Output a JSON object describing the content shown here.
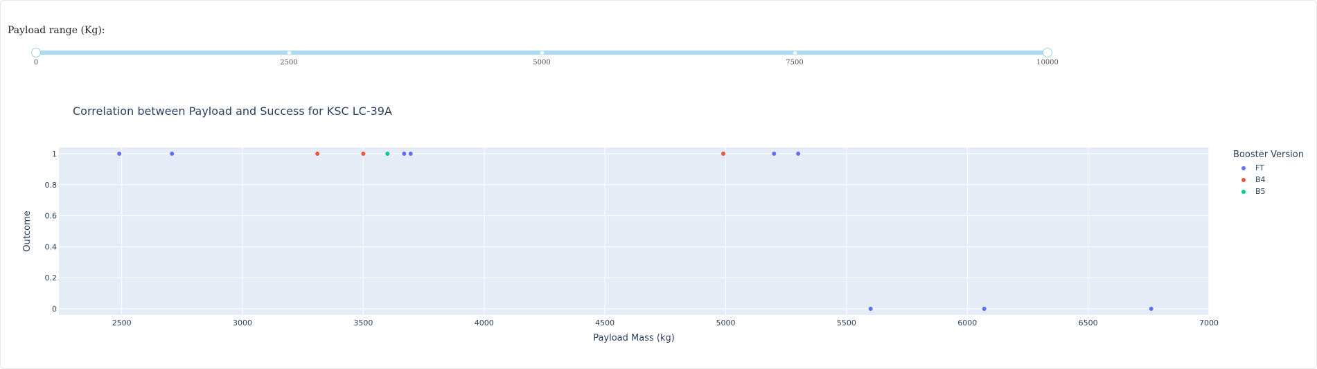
{
  "slider": {
    "label": "Payload range (Kg):",
    "min": 0,
    "max": 10000,
    "value": [
      0,
      10000
    ],
    "marks": [
      "0",
      "2500",
      "5000",
      "7500",
      "10000"
    ]
  },
  "chart_data": {
    "type": "scatter",
    "title": "Correlation between Payload and Success for KSC LC-39A",
    "xlabel": "Payload Mass (kg)",
    "ylabel": "Outcome",
    "xlim": [
      2240,
      7000
    ],
    "ylim": [
      -0.04,
      1.04
    ],
    "xticks": [
      2500,
      3000,
      3500,
      4000,
      4500,
      5000,
      5500,
      6000,
      6500,
      7000
    ],
    "yticks": [
      0,
      0.2,
      0.4,
      0.6,
      0.8,
      1
    ],
    "ytick_labels": [
      "0",
      "0.2",
      "0.4",
      "0.6",
      "0.8",
      "1"
    ],
    "grid": true,
    "legend_title": "Booster Version",
    "legend_position": "right",
    "series": [
      {
        "name": "FT",
        "color": "#636efa",
        "points": [
          {
            "x": 2490,
            "y": 1
          },
          {
            "x": 2708,
            "y": 1
          },
          {
            "x": 3669,
            "y": 1
          },
          {
            "x": 3696,
            "y": 1
          },
          {
            "x": 5200,
            "y": 1
          },
          {
            "x": 5300,
            "y": 1
          },
          {
            "x": 5600,
            "y": 0
          },
          {
            "x": 6070,
            "y": 0
          },
          {
            "x": 6761,
            "y": 0
          }
        ]
      },
      {
        "name": "B4",
        "color": "#ef553b",
        "points": [
          {
            "x": 3310,
            "y": 1
          },
          {
            "x": 3500,
            "y": 1
          },
          {
            "x": 4990,
            "y": 1
          }
        ]
      },
      {
        "name": "B5",
        "color": "#00cc96",
        "points": [
          {
            "x": 3600,
            "y": 1
          }
        ]
      }
    ]
  }
}
